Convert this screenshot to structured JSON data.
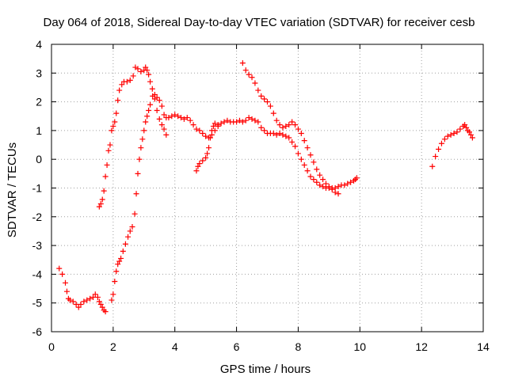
{
  "chart_data": {
    "type": "scatter",
    "title": "Day 064 of 2018, Sidereal Day-to-day VTEC variation (SDTVAR) for receiver cesb",
    "xlabel": "GPS time / hours",
    "ylabel": "SDTVAR / TECUs",
    "xlim": [
      0,
      14
    ],
    "ylim": [
      -6,
      4
    ],
    "xticks": [
      0,
      2,
      4,
      6,
      8,
      10,
      12,
      14
    ],
    "yticks": [
      -6,
      -5,
      -4,
      -3,
      -2,
      -1,
      0,
      1,
      2,
      3,
      4
    ],
    "grid": true,
    "marker": "+",
    "color": "#ff0000",
    "series": [
      {
        "name": "SDTVAR",
        "points": [
          [
            0.25,
            -3.8
          ],
          [
            0.35,
            -4.0
          ],
          [
            0.45,
            -4.3
          ],
          [
            0.5,
            -4.6
          ],
          [
            0.55,
            -4.85
          ],
          [
            0.6,
            -4.9
          ],
          [
            0.7,
            -4.95
          ],
          [
            0.8,
            -5.05
          ],
          [
            0.88,
            -5.15
          ],
          [
            0.95,
            -5.05
          ],
          [
            1.05,
            -4.95
          ],
          [
            1.15,
            -4.9
          ],
          [
            1.25,
            -4.85
          ],
          [
            1.35,
            -4.8
          ],
          [
            1.42,
            -4.7
          ],
          [
            1.5,
            -4.8
          ],
          [
            1.55,
            -4.95
          ],
          [
            1.6,
            -5.05
          ],
          [
            1.65,
            -5.15
          ],
          [
            1.7,
            -5.25
          ],
          [
            1.75,
            -5.3
          ],
          [
            1.55,
            -1.65
          ],
          [
            1.6,
            -1.55
          ],
          [
            1.65,
            -1.4
          ],
          [
            1.7,
            -1.1
          ],
          [
            1.75,
            -0.6
          ],
          [
            1.8,
            -0.2
          ],
          [
            1.85,
            0.3
          ],
          [
            1.9,
            0.5
          ],
          [
            1.95,
            1.0
          ],
          [
            2.0,
            1.15
          ],
          [
            2.05,
            1.3
          ],
          [
            2.1,
            1.6
          ],
          [
            2.15,
            2.05
          ],
          [
            2.2,
            2.4
          ],
          [
            2.28,
            2.6
          ],
          [
            2.35,
            2.7
          ],
          [
            2.45,
            2.7
          ],
          [
            2.55,
            2.75
          ],
          [
            2.65,
            2.9
          ],
          [
            2.72,
            3.2
          ],
          [
            2.8,
            3.15
          ],
          [
            2.9,
            3.05
          ],
          [
            3.0,
            3.1
          ],
          [
            3.05,
            3.2
          ],
          [
            3.1,
            3.1
          ],
          [
            3.15,
            2.95
          ],
          [
            3.2,
            2.7
          ],
          [
            3.27,
            2.45
          ],
          [
            3.35,
            2.1
          ],
          [
            3.42,
            1.7
          ],
          [
            3.5,
            1.4
          ],
          [
            3.58,
            1.2
          ],
          [
            3.65,
            1.05
          ],
          [
            3.72,
            0.85
          ],
          [
            1.95,
            -4.9
          ],
          [
            2.0,
            -4.7
          ],
          [
            2.05,
            -4.25
          ],
          [
            2.1,
            -3.9
          ],
          [
            2.15,
            -3.65
          ],
          [
            2.2,
            -3.55
          ],
          [
            2.25,
            -3.45
          ],
          [
            2.32,
            -3.2
          ],
          [
            2.4,
            -2.95
          ],
          [
            2.48,
            -2.7
          ],
          [
            2.55,
            -2.5
          ],
          [
            2.62,
            -2.35
          ],
          [
            2.7,
            -1.9
          ],
          [
            2.75,
            -1.2
          ],
          [
            2.8,
            -0.5
          ],
          [
            2.85,
            0.0
          ],
          [
            2.9,
            0.4
          ],
          [
            2.95,
            0.7
          ],
          [
            3.0,
            1.0
          ],
          [
            3.05,
            1.3
          ],
          [
            3.1,
            1.5
          ],
          [
            3.15,
            1.7
          ],
          [
            3.2,
            1.9
          ],
          [
            3.28,
            2.2
          ],
          [
            3.35,
            2.25
          ],
          [
            3.42,
            2.15
          ],
          [
            3.5,
            2.05
          ],
          [
            3.58,
            1.85
          ],
          [
            3.65,
            1.55
          ],
          [
            3.72,
            1.45
          ],
          [
            3.8,
            1.45
          ],
          [
            3.9,
            1.5
          ],
          [
            4.0,
            1.55
          ],
          [
            4.1,
            1.5
          ],
          [
            4.2,
            1.45
          ],
          [
            4.3,
            1.4
          ],
          [
            4.4,
            1.45
          ],
          [
            4.5,
            1.35
          ],
          [
            4.6,
            1.2
          ],
          [
            4.7,
            1.05
          ],
          [
            4.8,
            1.0
          ],
          [
            4.9,
            0.9
          ],
          [
            5.0,
            0.8
          ],
          [
            5.1,
            0.75
          ],
          [
            5.2,
            0.85
          ],
          [
            5.3,
            1.0
          ],
          [
            5.4,
            1.15
          ],
          [
            4.7,
            -0.4
          ],
          [
            4.75,
            -0.25
          ],
          [
            4.8,
            -0.15
          ],
          [
            4.9,
            -0.05
          ],
          [
            5.0,
            0.05
          ],
          [
            5.05,
            0.2
          ],
          [
            5.1,
            0.4
          ],
          [
            5.15,
            0.75
          ],
          [
            5.2,
            1.0
          ],
          [
            5.25,
            1.15
          ],
          [
            5.3,
            1.25
          ],
          [
            5.4,
            1.2
          ],
          [
            5.5,
            1.25
          ],
          [
            5.6,
            1.3
          ],
          [
            5.7,
            1.35
          ],
          [
            5.8,
            1.3
          ],
          [
            5.9,
            1.3
          ],
          [
            6.0,
            1.3
          ],
          [
            6.1,
            1.35
          ],
          [
            6.2,
            1.3
          ],
          [
            6.3,
            1.35
          ],
          [
            6.4,
            1.45
          ],
          [
            6.5,
            1.4
          ],
          [
            6.6,
            1.35
          ],
          [
            6.7,
            1.3
          ],
          [
            6.8,
            1.1
          ],
          [
            6.9,
            1.0
          ],
          [
            7.0,
            0.9
          ],
          [
            7.1,
            0.9
          ],
          [
            7.2,
            0.9
          ],
          [
            7.3,
            0.85
          ],
          [
            7.4,
            0.9
          ],
          [
            7.5,
            0.85
          ],
          [
            7.6,
            0.8
          ],
          [
            7.7,
            0.75
          ],
          [
            7.8,
            0.6
          ],
          [
            7.9,
            0.45
          ],
          [
            8.0,
            0.2
          ],
          [
            8.1,
            0.0
          ],
          [
            8.2,
            -0.2
          ],
          [
            8.3,
            -0.4
          ],
          [
            8.4,
            -0.6
          ],
          [
            8.5,
            -0.7
          ],
          [
            8.6,
            -0.8
          ],
          [
            8.7,
            -0.9
          ],
          [
            8.8,
            -0.95
          ],
          [
            8.9,
            -1.0
          ],
          [
            9.0,
            -1.0
          ],
          [
            9.1,
            -1.0
          ],
          [
            9.2,
            -1.0
          ],
          [
            9.3,
            -0.95
          ],
          [
            9.4,
            -0.9
          ],
          [
            9.5,
            -0.9
          ],
          [
            9.6,
            -0.85
          ],
          [
            9.7,
            -0.8
          ],
          [
            9.8,
            -0.75
          ],
          [
            9.85,
            -0.7
          ],
          [
            9.9,
            -0.65
          ],
          [
            6.2,
            3.35
          ],
          [
            6.3,
            3.1
          ],
          [
            6.4,
            2.95
          ],
          [
            6.5,
            2.85
          ],
          [
            6.6,
            2.65
          ],
          [
            6.7,
            2.4
          ],
          [
            6.8,
            2.2
          ],
          [
            6.9,
            2.1
          ],
          [
            7.0,
            2.0
          ],
          [
            7.1,
            1.85
          ],
          [
            7.2,
            1.6
          ],
          [
            7.3,
            1.35
          ],
          [
            7.4,
            1.2
          ],
          [
            7.5,
            1.1
          ],
          [
            7.6,
            1.15
          ],
          [
            7.7,
            1.2
          ],
          [
            7.8,
            1.3
          ],
          [
            7.9,
            1.2
          ],
          [
            8.0,
            1.05
          ],
          [
            8.1,
            0.9
          ],
          [
            8.2,
            0.65
          ],
          [
            8.3,
            0.4
          ],
          [
            8.4,
            0.15
          ],
          [
            8.5,
            -0.1
          ],
          [
            8.6,
            -0.35
          ],
          [
            8.7,
            -0.55
          ],
          [
            8.8,
            -0.7
          ],
          [
            8.9,
            -0.85
          ],
          [
            9.0,
            -0.95
          ],
          [
            9.1,
            -1.05
          ],
          [
            9.2,
            -1.15
          ],
          [
            9.3,
            -1.2
          ],
          [
            12.35,
            -0.25
          ],
          [
            12.45,
            0.1
          ],
          [
            12.55,
            0.35
          ],
          [
            12.65,
            0.55
          ],
          [
            12.75,
            0.7
          ],
          [
            12.85,
            0.8
          ],
          [
            12.95,
            0.85
          ],
          [
            13.05,
            0.9
          ],
          [
            13.15,
            0.95
          ],
          [
            13.25,
            1.05
          ],
          [
            13.35,
            1.15
          ],
          [
            13.4,
            1.2
          ],
          [
            13.45,
            1.1
          ],
          [
            13.5,
            1.0
          ],
          [
            13.55,
            0.95
          ],
          [
            13.6,
            0.85
          ],
          [
            13.65,
            0.75
          ]
        ]
      }
    ]
  }
}
